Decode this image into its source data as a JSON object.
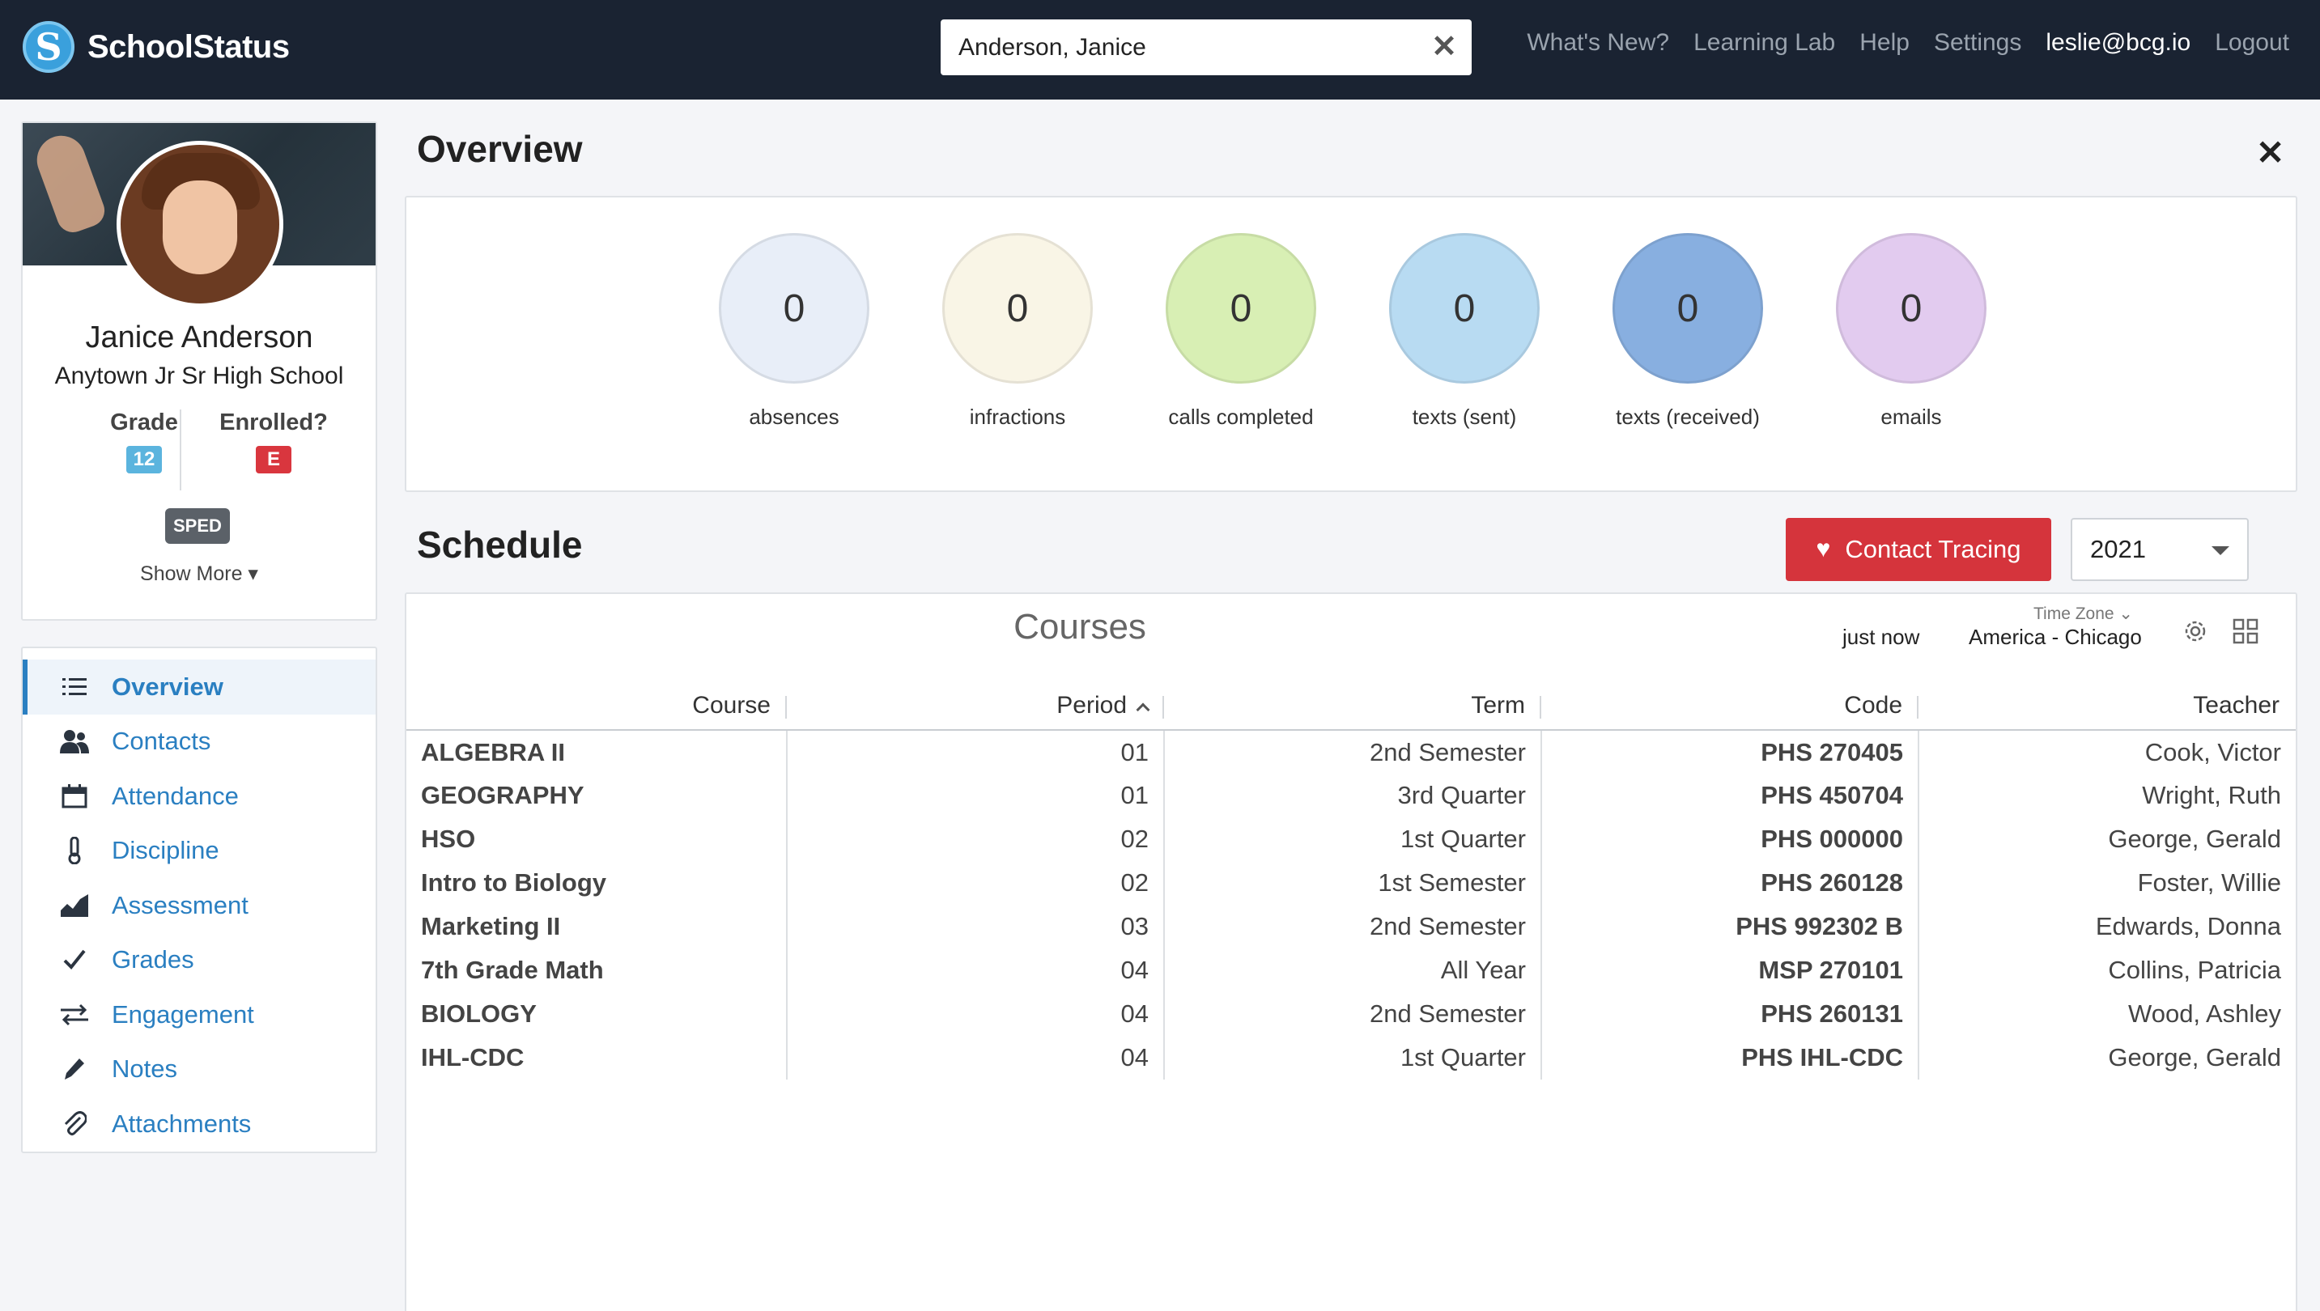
{
  "app": {
    "name": "SchoolStatus"
  },
  "search": {
    "value": "Anderson, Janice"
  },
  "nav": [
    {
      "label": "What's New?"
    },
    {
      "label": "Learning Lab"
    },
    {
      "label": "Help"
    },
    {
      "label": "Settings"
    },
    {
      "label": "leslie@bcg.io"
    },
    {
      "label": "Logout"
    }
  ],
  "student": {
    "name": "Janice Anderson",
    "school": "Anytown Jr Sr High School",
    "grade_label": "Grade",
    "grade_value": "12",
    "enrolled_label": "Enrolled?",
    "enrolled_value": "E",
    "tag": "SPED",
    "show_more": "Show More ▾"
  },
  "menu": [
    {
      "label": "Overview",
      "icon": "list-icon",
      "active": true
    },
    {
      "label": "Contacts",
      "icon": "users-icon"
    },
    {
      "label": "Attendance",
      "icon": "calendar-icon"
    },
    {
      "label": "Discipline",
      "icon": "thermometer-icon"
    },
    {
      "label": "Assessment",
      "icon": "area-chart-icon"
    },
    {
      "label": "Grades",
      "icon": "check-icon"
    },
    {
      "label": "Engagement",
      "icon": "exchange-icon"
    },
    {
      "label": "Notes",
      "icon": "pencil-icon"
    },
    {
      "label": "Attachments",
      "icon": "paperclip-icon"
    }
  ],
  "overview": {
    "title": "Overview",
    "stats": [
      {
        "value": "0",
        "label": "absences",
        "color": "#e8eef8"
      },
      {
        "value": "0",
        "label": "infractions",
        "color": "#f9f5e6"
      },
      {
        "value": "0",
        "label": "calls completed",
        "color": "#d8efb4"
      },
      {
        "value": "0",
        "label": "texts (sent)",
        "color": "#b8dbf2"
      },
      {
        "value": "0",
        "label": "texts (received)",
        "color": "#88afe0"
      },
      {
        "value": "0",
        "label": "emails",
        "color": "#e2cbef"
      }
    ]
  },
  "schedule": {
    "title": "Schedule",
    "contact_tracing": "Contact Tracing",
    "year": "2021",
    "courses_title": "Courses",
    "updated": "just now",
    "timezone_label": "Time Zone",
    "timezone_value": "America - Chicago",
    "columns": [
      "Course",
      "Period",
      "Term",
      "Code",
      "Teacher"
    ],
    "rows": [
      [
        "ALGEBRA II",
        "01",
        "2nd Semester",
        "PHS 270405",
        "Cook, Victor"
      ],
      [
        "GEOGRAPHY",
        "01",
        "3rd Quarter",
        "PHS 450704",
        "Wright, Ruth"
      ],
      [
        "HSO",
        "02",
        "1st Quarter",
        "PHS 000000",
        "George, Gerald"
      ],
      [
        "Intro to Biology",
        "02",
        "1st Semester",
        "PHS 260128",
        "Foster, Willie"
      ],
      [
        "Marketing II",
        "03",
        "2nd Semester",
        "PHS 992302 B",
        "Edwards, Donna"
      ],
      [
        "7th Grade Math",
        "04",
        "All Year",
        "MSP 270101",
        "Collins, Patricia"
      ],
      [
        "BIOLOGY",
        "04",
        "2nd Semester",
        "PHS 260131",
        "Wood, Ashley"
      ],
      [
        "IHL-CDC",
        "04",
        "1st Quarter",
        "PHS IHL-CDC",
        "George, Gerald"
      ]
    ]
  }
}
